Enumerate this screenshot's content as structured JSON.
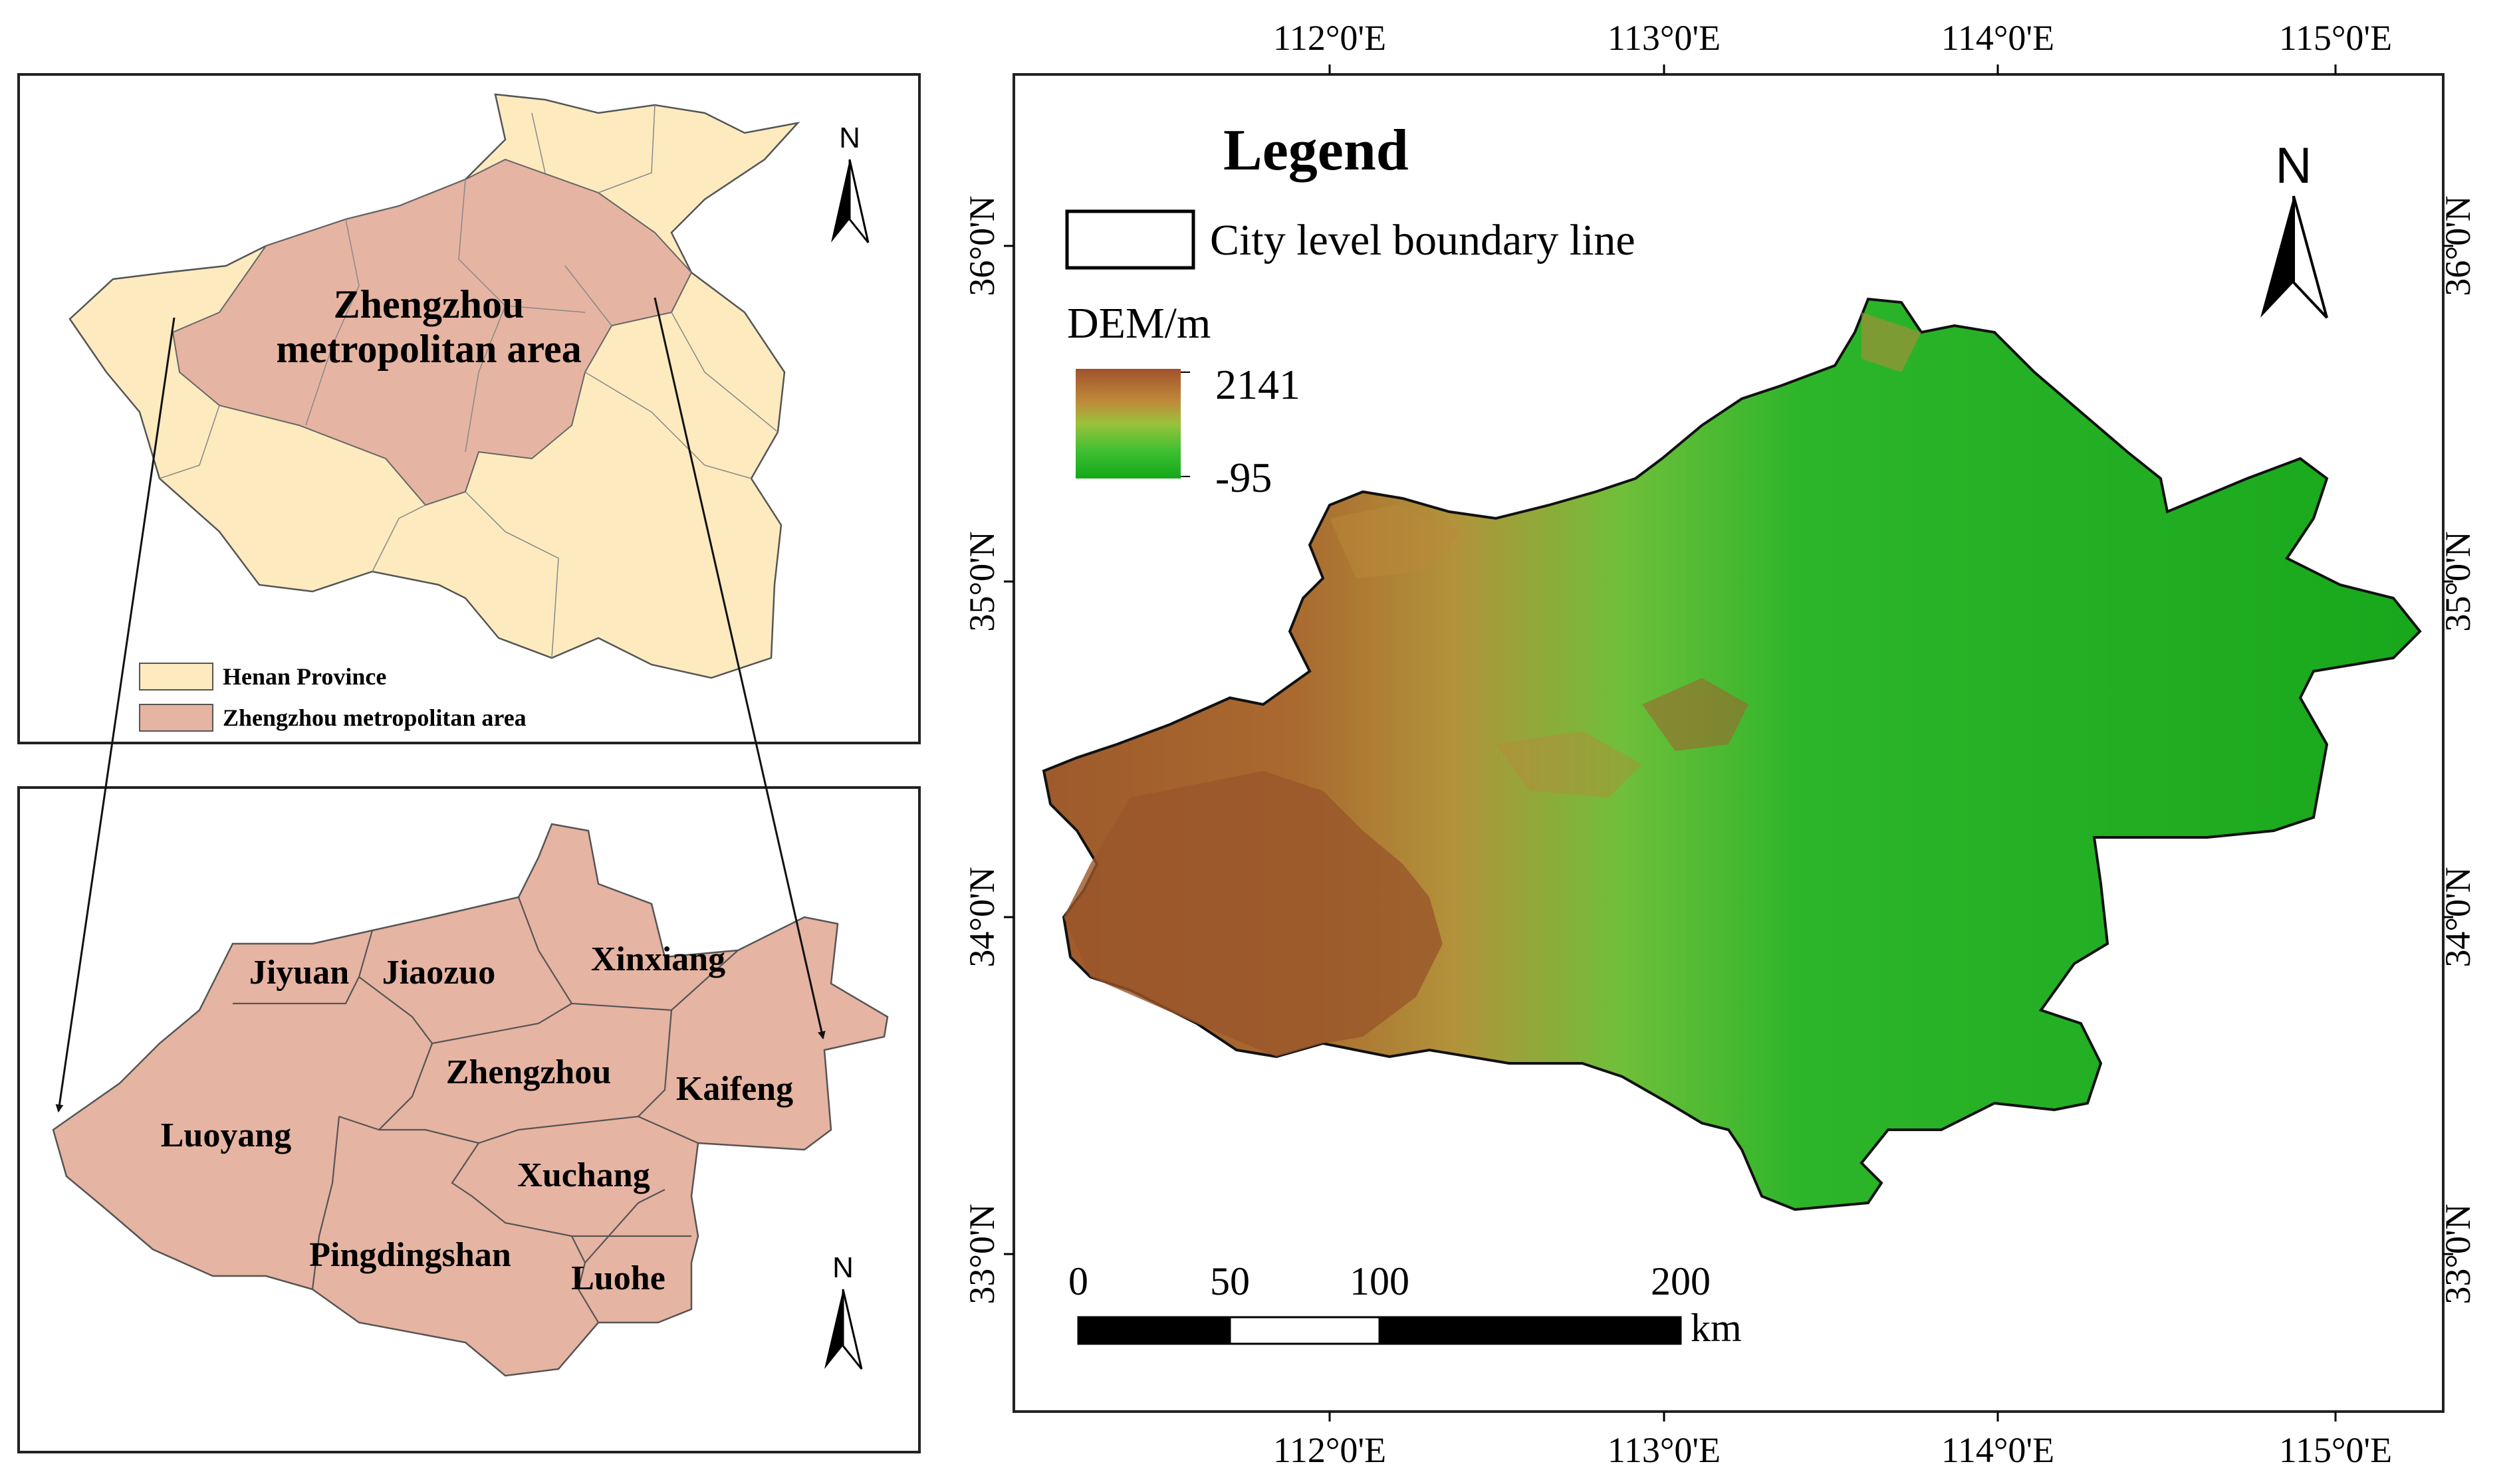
{
  "overview_map": {
    "north_label": "N",
    "region_label_line1": "Zhengzhou",
    "region_label_line2": "metropolitan area",
    "legend": [
      {
        "label": "Henan Province",
        "color": "#fdebbf"
      },
      {
        "label": "Zhengzhou metropolitan area",
        "color": "#e6b4a2"
      }
    ]
  },
  "cities_map": {
    "north_label": "N",
    "fill_color": "#e6b4a2",
    "cities": [
      "Jiyuan",
      "Jiaozuo",
      "Xinxiang",
      "Zhengzhou",
      "Kaifeng",
      "Luoyang",
      "Xuchang",
      "Pingdingshan",
      "Luohe"
    ]
  },
  "dem_map": {
    "legend_title": "Legend",
    "boundary_label": "City level boundary line",
    "dem_title": "DEM/m",
    "dem_max": "2141",
    "dem_min": "-95",
    "dem_colors": [
      "#a0522d",
      "#c08a3a",
      "#9bc23c",
      "#3fbf32",
      "#13a818"
    ],
    "north_label": "N",
    "lon_labels": [
      "112°0'E",
      "113°0'E",
      "114°0'E",
      "115°0'E"
    ],
    "lat_labels": [
      "36°0'N",
      "35°0'N",
      "34°0'N",
      "33°0'N"
    ],
    "scale_labels": [
      "0",
      "50",
      "100",
      "200"
    ],
    "scale_unit": "km"
  }
}
